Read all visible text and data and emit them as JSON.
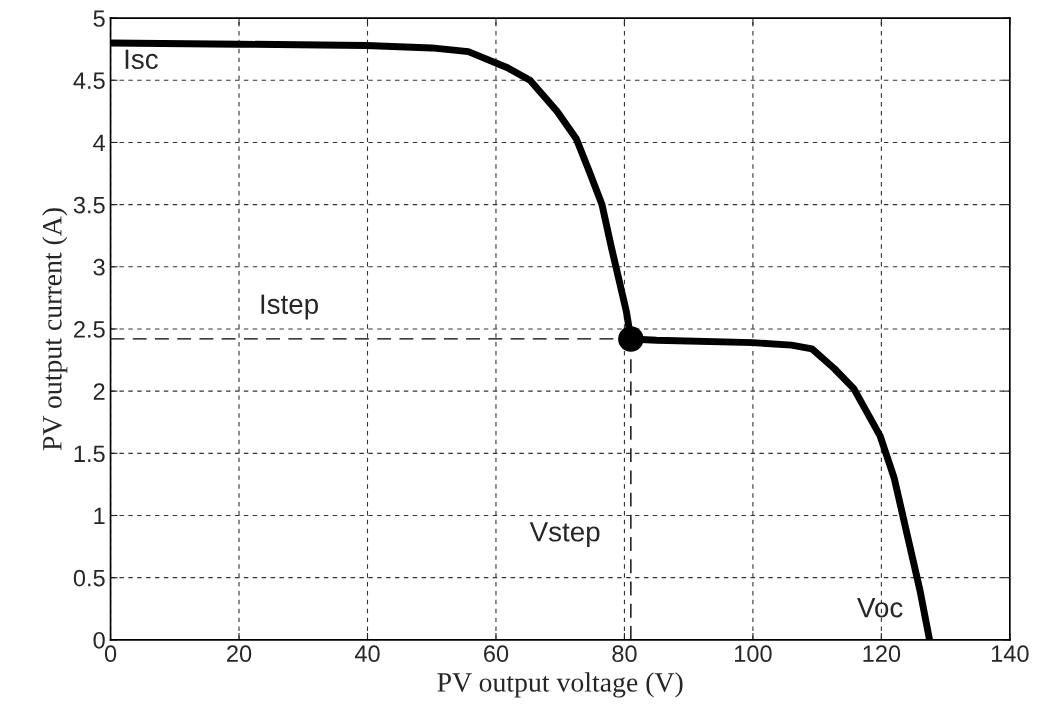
{
  "chart_data": {
    "type": "line",
    "xlabel": "PV output voltage (V)",
    "ylabel": "PV output current (A)",
    "xlim": [
      0,
      140
    ],
    "ylim": [
      0,
      5
    ],
    "xticks": [
      0,
      20,
      40,
      60,
      80,
      100,
      120,
      140
    ],
    "yticks": [
      0,
      0.5,
      1,
      1.5,
      2,
      2.5,
      3,
      3.5,
      4,
      4.5,
      5
    ],
    "grid": true,
    "series": [
      {
        "color": "#000000",
        "line_style": "solid",
        "marker": "none",
        "x": [
          0,
          20,
          39.8,
          50,
          55.7,
          61.8,
          65.3,
          69.5,
          72.5,
          74.5,
          76.5,
          78,
          80.3,
          81,
          85,
          100,
          106,
          109.2,
          112.7,
          115.7,
          119.8,
          122,
          124,
          126,
          127.5
        ],
        "values": [
          4.8,
          4.79,
          4.78,
          4.76,
          4.73,
          4.6,
          4.5,
          4.25,
          4.03,
          3.77,
          3.5,
          3.15,
          2.64,
          2.42,
          2.41,
          2.39,
          2.37,
          2.34,
          2.18,
          2.02,
          1.64,
          1.3,
          0.85,
          0.4,
          0
        ]
      },
      {
        "color": "#000000",
        "line_style": "dashed",
        "marker": "none",
        "x": [
          0,
          81
        ],
        "values": [
          2.42,
          2.42
        ]
      },
      {
        "color": "#000000",
        "line_style": "dashed",
        "marker": "none",
        "x": [
          81,
          81
        ],
        "values": [
          0,
          2.42
        ]
      },
      {
        "type": "scatter",
        "color": "#000000",
        "marker": "circle",
        "x": [
          81
        ],
        "values": [
          2.42
        ]
      }
    ],
    "annotations": [
      "Isc",
      "Istep",
      "Vstep",
      "Voc"
    ]
  }
}
